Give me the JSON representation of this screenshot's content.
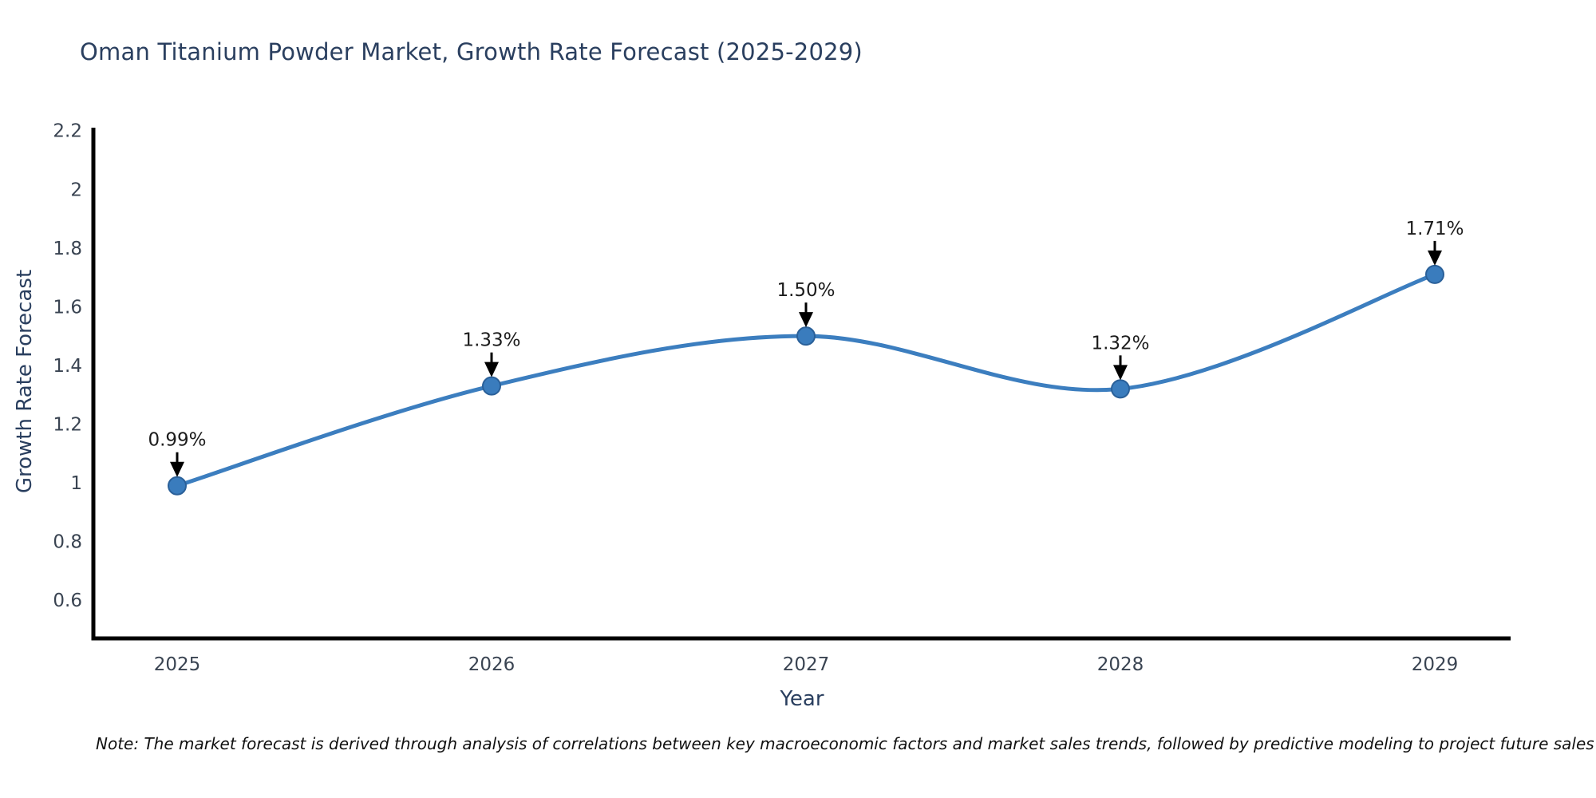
{
  "title": "Oman Titanium Powder Market, Growth Rate Forecast (2025-2029)",
  "note": "Note: The market forecast is derived through analysis of correlations between key macroeconomic factors and market sales trends, followed by predictive modeling to project future sales",
  "chart_data": {
    "type": "line",
    "title": "Oman Titanium Powder Market, Growth Rate Forecast (2025-2029)",
    "xlabel": "Year",
    "ylabel": "Growth Rate Forecast",
    "categories": [
      "2025",
      "2026",
      "2027",
      "2028",
      "2029"
    ],
    "series": [
      {
        "name": "Growth Rate Forecast",
        "values": [
          0.99,
          1.33,
          1.5,
          1.32,
          1.71
        ]
      }
    ],
    "point_labels": [
      "0.99%",
      "1.33%",
      "1.50%",
      "1.32%",
      "1.71%"
    ],
    "ytick_labels": [
      "0.6",
      "0.8",
      "1",
      "1.2",
      "1.4",
      "1.6",
      "1.8",
      "2",
      "2.2"
    ],
    "yticks": [
      0.6,
      0.8,
      1.0,
      1.2,
      1.4,
      1.6,
      1.8,
      2.0,
      2.2
    ],
    "ylim": [
      0.47,
      2.21
    ],
    "grid": false,
    "legend": "none",
    "line_shape": "spline",
    "annotations": "black down-arrows from value labels to markers",
    "colors": {
      "line": "#3c7ebf",
      "marker_fill": "#3a7cbd",
      "marker_edge": "#2a6099",
      "axis_line": "#000000",
      "title_text": "#2a3f5f",
      "axis_label_text": "#2a3f5f",
      "tick_text": "#3a4452",
      "annotation_text": "#1c1c1c",
      "arrow": "#000000",
      "note_text": "#111111",
      "background": "#ffffff"
    }
  }
}
